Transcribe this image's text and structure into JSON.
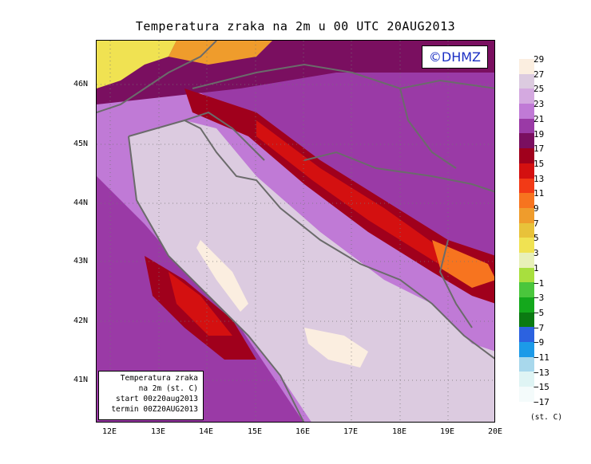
{
  "title": "Temperatura zraka na 2m u 00 UTC 20AUG2013",
  "logo": "©DHMZ",
  "info_box": {
    "line1": "Temperatura zraka",
    "line2": "na 2m (st. C)",
    "line3": "start 00z20aug2013",
    "line4": "termin 00Z20AUG2013"
  },
  "lat_labels": [
    "46N",
    "45N",
    "44N",
    "43N",
    "42N",
    "41N"
  ],
  "lon_labels": [
    "12E",
    "13E",
    "14E",
    "15E",
    "16E",
    "17E",
    "18E",
    "19E",
    "20E"
  ],
  "colorbar": {
    "labels": [
      "29",
      "27",
      "25",
      "23",
      "21",
      "19",
      "17",
      "15",
      "13",
      "11",
      "9",
      "7",
      "5",
      "3",
      "1",
      "−1",
      "−3",
      "−5",
      "−7",
      "−9",
      "−11",
      "−13",
      "−15",
      "−17"
    ],
    "unit": "(st. C)",
    "colors": [
      "#fbeee0",
      "#dccbe0",
      "#d4a9e0",
      "#c07ad6",
      "#9a3aa6",
      "#7a0f60",
      "#a0001c",
      "#d41010",
      "#f23a16",
      "#f7741f",
      "#ef9c2c",
      "#e8c23a",
      "#f0e252",
      "#e8f0b8",
      "#a8df3e",
      "#4ac63c",
      "#14a81c",
      "#0b7a12",
      "#2c62e0",
      "#1c9ae8",
      "#a8d8ec",
      "#dff4f4",
      "#f4fbfb"
    ]
  }
}
